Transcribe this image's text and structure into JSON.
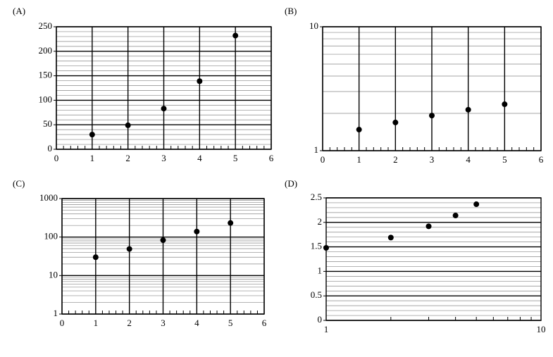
{
  "chart_data": [
    {
      "type": "scatter",
      "title": "(A)",
      "x": [
        1,
        2,
        3,
        4,
        5
      ],
      "values": [
        30,
        49,
        83,
        139,
        232
      ],
      "color": "#000000",
      "xlim": [
        0,
        6
      ],
      "xticks": [
        0,
        1,
        2,
        3,
        4,
        5,
        6
      ],
      "ylim": [
        0,
        250
      ],
      "yticks": [
        0,
        50,
        100,
        150,
        200,
        250
      ],
      "xscale": "linear",
      "yscale": "linear",
      "xgrid": true,
      "ygrid": true,
      "minor": 5
    },
    {
      "type": "scatter",
      "title": "(B)",
      "x": [
        1,
        2,
        3,
        4,
        5
      ],
      "values": [
        1.48,
        1.69,
        1.92,
        2.14,
        2.37
      ],
      "color": "#000000",
      "xlim": [
        0,
        6
      ],
      "xticks": [
        0,
        1,
        2,
        3,
        4,
        5,
        6
      ],
      "ylim": [
        1,
        10
      ],
      "yticks": [
        1,
        10
      ],
      "xscale": "linear",
      "yscale": "log",
      "xgrid": true,
      "ygrid": true,
      "minor": 5
    },
    {
      "type": "scatter",
      "title": "(C)",
      "x": [
        1,
        2,
        3,
        4,
        5
      ],
      "values": [
        30,
        49,
        83,
        139,
        232
      ],
      "color": "#000000",
      "xlim": [
        0,
        6
      ],
      "xticks": [
        0,
        1,
        2,
        3,
        4,
        5,
        6
      ],
      "ylim": [
        1,
        1000
      ],
      "yticks": [
        1,
        10,
        100,
        1000
      ],
      "xscale": "linear",
      "yscale": "log",
      "xgrid": true,
      "ygrid": true,
      "minor": 5
    },
    {
      "type": "scatter",
      "title": "(D)",
      "x": [
        1,
        2,
        3,
        4,
        5
      ],
      "values": [
        1.48,
        1.69,
        1.92,
        2.14,
        2.37
      ],
      "color": "#000000",
      "xlim": [
        1,
        10
      ],
      "xticks": [
        1,
        10
      ],
      "ylim": [
        0,
        2.5
      ],
      "yticks": [
        0,
        0.5,
        1,
        1.5,
        2,
        2.5
      ],
      "xscale": "log",
      "yscale": "linear",
      "xgrid": false,
      "ygrid": true,
      "minor": 5
    }
  ]
}
